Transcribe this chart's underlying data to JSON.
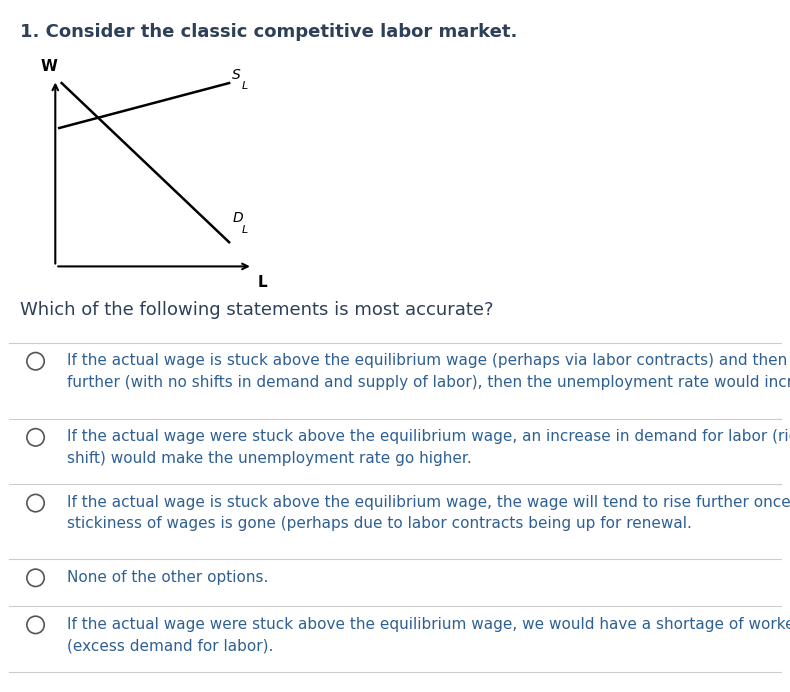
{
  "title": "1. Consider the classic competitive labor market.",
  "title_color": "#2E4057",
  "title_fontsize": 13,
  "question": "Which of the following statements is most accurate?",
  "question_color": "#2E4057",
  "question_fontsize": 13,
  "bg_color": "#ffffff",
  "text_color": "#2E6094",
  "option_fontsize": 11,
  "options": [
    "If the actual wage is stuck above the equilibrium wage (perhaps via labor contracts) and then increases\nfurther (with no shifts in demand and supply of labor), then the unemployment rate would increase.",
    "If the actual wage were stuck above the equilibrium wage, an increase in demand for labor (rightward\nshift) would make the unemployment rate go higher.",
    "If the actual wage is stuck above the equilibrium wage, the wage will tend to rise further once the\nstickiness of wages is gone (perhaps due to labor contracts being up for renewal.",
    "None of the other options.",
    "If the actual wage were stuck above the equilibrium wage, we would have a shortage of workers\n(excess demand for labor)."
  ],
  "divider_color": "#cccccc",
  "axis_color": "#000000"
}
